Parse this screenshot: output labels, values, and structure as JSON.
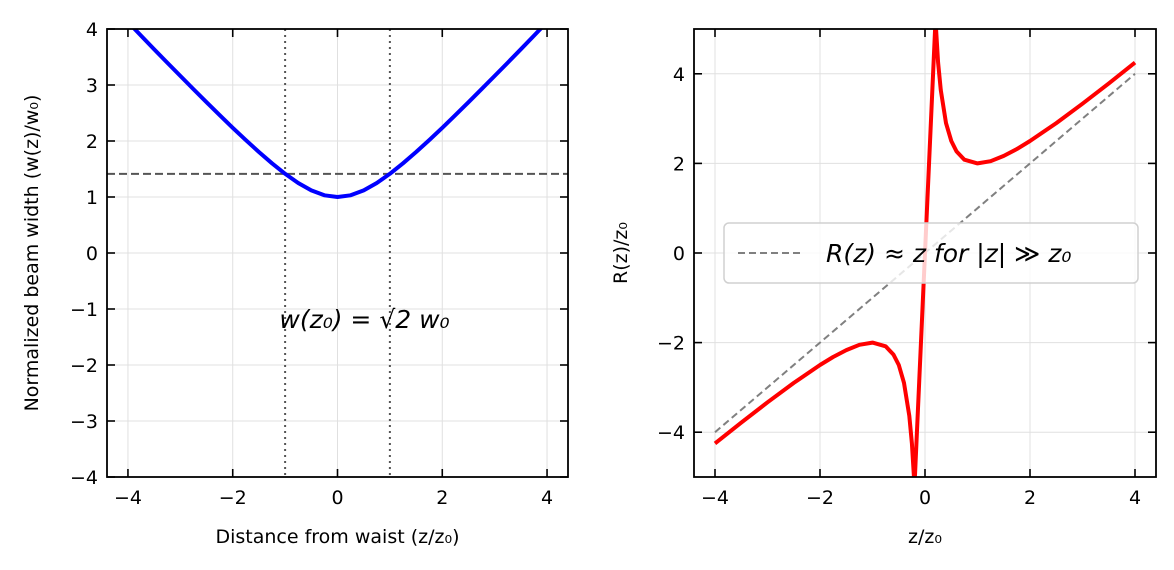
{
  "chart_data": [
    {
      "type": "line",
      "xlabel": "Distance from waist (z/z₀)",
      "ylabel": "Normalized beam width (w(z)/w₀)",
      "xlim": [
        -4.4,
        4.4
      ],
      "ylim": [
        -4,
        4
      ],
      "xticks": [
        -4,
        -2,
        0,
        2,
        4
      ],
      "yticks": [
        -4,
        -3,
        -2,
        -1,
        0,
        1,
        2,
        3,
        4
      ],
      "grid": true,
      "annotation": {
        "text": "w(z₀) = √2 w₀",
        "x": 0,
        "y": -1.2
      },
      "reference_lines": [
        {
          "orientation": "horizontal",
          "value": 1.414,
          "style": "dashed",
          "color": "#555555"
        },
        {
          "orientation": "vertical",
          "value": -1,
          "style": "dotted",
          "color": "#555555"
        },
        {
          "orientation": "vertical",
          "value": 1,
          "style": "dotted",
          "color": "#555555"
        }
      ],
      "series": [
        {
          "color": "#0000ff",
          "x": [
            -4,
            -3.75,
            -3.5,
            -3.25,
            -3,
            -2.75,
            -2.5,
            -2.25,
            -2,
            -1.75,
            -1.5,
            -1.25,
            -1,
            -0.75,
            -0.5,
            -0.25,
            0,
            0.25,
            0.5,
            0.75,
            1,
            1.25,
            1.5,
            1.75,
            2,
            2.25,
            2.5,
            2.75,
            3,
            3.25,
            3.5,
            3.75,
            4
          ],
          "y": [
            4.123,
            3.881,
            3.64,
            3.4,
            3.162,
            2.926,
            2.693,
            2.462,
            2.236,
            2.016,
            1.803,
            1.601,
            1.414,
            1.25,
            1.118,
            1.031,
            1,
            1.031,
            1.118,
            1.25,
            1.414,
            1.601,
            1.803,
            2.016,
            2.236,
            2.462,
            2.693,
            2.926,
            3.162,
            3.4,
            3.64,
            3.881,
            4.123
          ]
        }
      ]
    },
    {
      "type": "line",
      "xlabel": "z/z₀",
      "ylabel": "R(z)/z₀",
      "xlim": [
        -4.4,
        4.4
      ],
      "ylim": [
        -5,
        5
      ],
      "xticks": [
        -4,
        -2,
        0,
        2,
        4
      ],
      "yticks": [
        -4,
        -2,
        0,
        2,
        4
      ],
      "grid": true,
      "legend": {
        "placement": "center-right",
        "entries": [
          "R(z) ≈ z for |z| ≫ z₀"
        ]
      },
      "series": [
        {
          "color": "#ff0000",
          "x": [
            -4,
            -3.5,
            -3,
            -2.5,
            -2,
            -1.75,
            -1.5,
            -1.25,
            -1,
            -0.75,
            -0.6,
            -0.5,
            -0.4,
            -0.3,
            -0.25,
            -0.2,
            0.2,
            0.25,
            0.3,
            0.4,
            0.5,
            0.6,
            0.75,
            1,
            1.25,
            1.5,
            1.75,
            2,
            2.5,
            3,
            3.5,
            4
          ],
          "y": [
            -4.25,
            -3.786,
            -3.333,
            -2.9,
            -2.5,
            -2.321,
            -2.167,
            -2.05,
            -2,
            -2.083,
            -2.267,
            -2.5,
            -2.9,
            -3.633,
            -4.25,
            -5.2,
            5.2,
            4.25,
            3.633,
            2.9,
            2.5,
            2.267,
            2.083,
            2,
            2.05,
            2.167,
            2.321,
            2.5,
            2.9,
            3.333,
            3.786,
            4.25
          ]
        },
        {
          "name": "R(z) ≈ z for |z| ≫ z₀",
          "color": "#808080",
          "style": "dashed",
          "x": [
            -4,
            4
          ],
          "y": [
            -4,
            4
          ]
        }
      ]
    }
  ]
}
